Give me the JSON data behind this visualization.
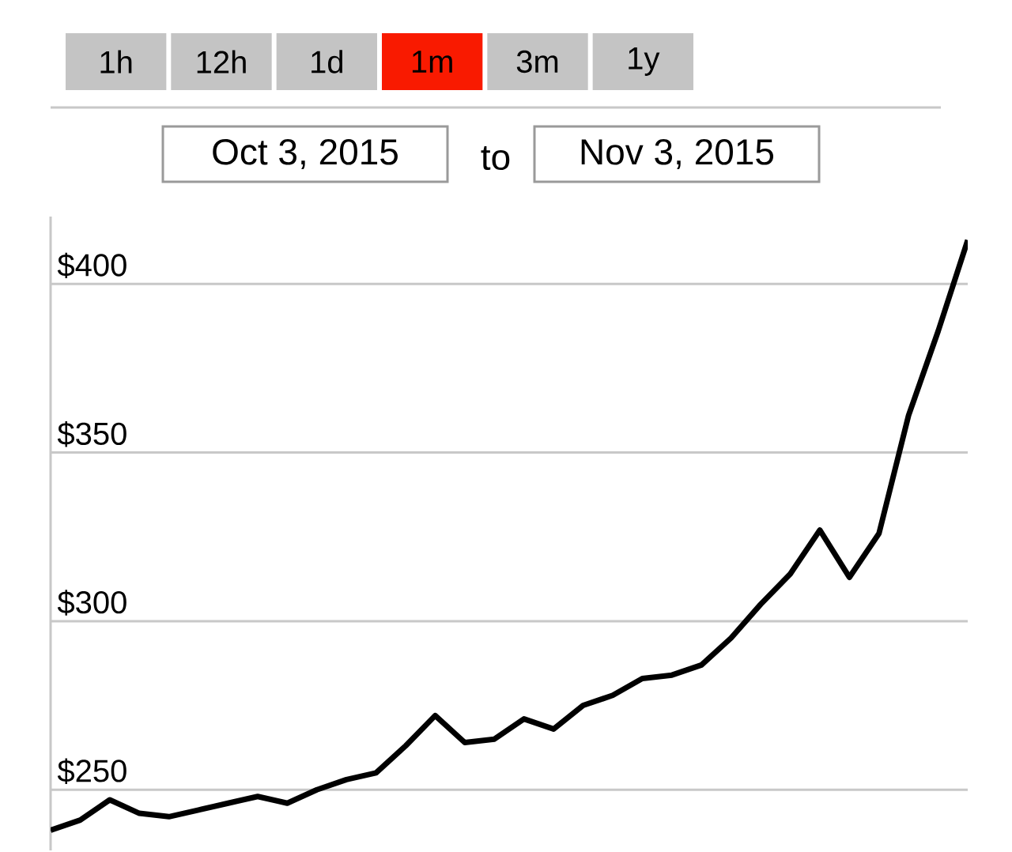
{
  "chart_data": [
    {
      "type": "other",
      "categories": [
        "1h",
        "12h",
        "1d",
        "1m",
        "3m",
        "1y"
      ],
      "colors": [
        "#c4c4c4",
        "#c4c4c4",
        "#c4c4c4",
        "#f91a00",
        "#c4c4c4",
        "#c4c4c4"
      ],
      "annotations": [
        "Oct 3, 2015",
        "to",
        "Nov 3, 2015"
      ]
    },
    {
      "type": "line",
      "categories": [
        null,
        null,
        null,
        null,
        null,
        null,
        null,
        null,
        null,
        null,
        null,
        null,
        null,
        null,
        null,
        null,
        null,
        null,
        null,
        null,
        null,
        null,
        null,
        null,
        null,
        null,
        null,
        null,
        null,
        null,
        null,
        null
      ],
      "values": [
        238,
        241,
        247,
        243,
        242,
        244,
        246,
        248,
        246,
        250,
        253,
        255,
        263,
        272,
        264,
        265,
        271,
        268,
        275,
        278,
        283,
        284,
        287,
        295,
        305,
        314,
        327,
        313,
        326,
        361,
        386,
        413
      ],
      "color": "#000000",
      "ylim": [
        232,
        420
      ],
      "yticks": [
        {
          "value": 250,
          "label": "$250"
        },
        {
          "value": 300,
          "label": "$300"
        },
        {
          "value": 350,
          "label": "$350"
        },
        {
          "value": 400,
          "label": "$400"
        }
      ],
      "grid": "y",
      "tick_labels": "y"
    }
  ]
}
